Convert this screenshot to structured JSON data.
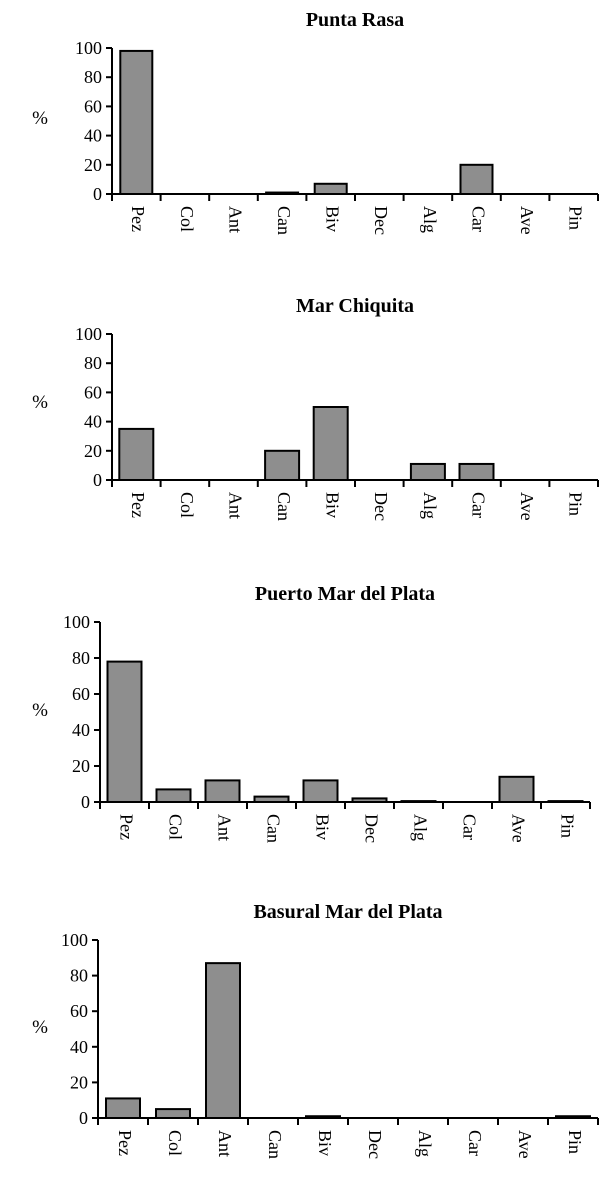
{
  "chart_data": [
    {
      "type": "bar",
      "title": "Punta Rasa",
      "ylabel": "%",
      "xlabel": "",
      "ylim": [
        0,
        100
      ],
      "yticks": [
        0,
        20,
        40,
        60,
        80,
        100
      ],
      "categories": [
        "Pez",
        "Col",
        "Ant",
        "Can",
        "Biv",
        "Dec",
        "Alg",
        "Car",
        "Ave",
        "Pin"
      ],
      "values": [
        98,
        0,
        0,
        1,
        7,
        0,
        0,
        20,
        0,
        0
      ],
      "bar_color": "#8e8e8e"
    },
    {
      "type": "bar",
      "title": "Mar Chiquita",
      "ylabel": "%",
      "xlabel": "",
      "ylim": [
        0,
        100
      ],
      "yticks": [
        0,
        20,
        40,
        60,
        80,
        100
      ],
      "categories": [
        "Pez",
        "Col",
        "Ant",
        "Can",
        "Biv",
        "Dec",
        "Alg",
        "Car",
        "Ave",
        "Pin"
      ],
      "values": [
        35,
        0,
        0,
        20,
        50,
        0,
        11,
        11,
        0,
        0
      ],
      "bar_color": "#8e8e8e"
    },
    {
      "type": "bar",
      "title": "Puerto Mar del Plata",
      "ylabel": "%",
      "xlabel": "",
      "ylim": [
        0,
        100
      ],
      "yticks": [
        0,
        20,
        40,
        60,
        80,
        100
      ],
      "categories": [
        "Pez",
        "Col",
        "Ant",
        "Can",
        "Biv",
        "Dec",
        "Alg",
        "Car",
        "Ave",
        "Pin"
      ],
      "values": [
        78,
        7,
        12,
        3,
        12,
        2,
        0.5,
        0,
        14,
        0.5
      ],
      "bar_color": "#8e8e8e"
    },
    {
      "type": "bar",
      "title": "Basural Mar del Plata",
      "ylabel": "%",
      "xlabel": "",
      "ylim": [
        0,
        100
      ],
      "yticks": [
        0,
        20,
        40,
        60,
        80,
        100
      ],
      "categories": [
        "Pez",
        "Col",
        "Ant",
        "Can",
        "Biv",
        "Dec",
        "Alg",
        "Car",
        "Ave",
        "Pin"
      ],
      "values": [
        11,
        5,
        87,
        0,
        1,
        0,
        0,
        0,
        0,
        1
      ],
      "bar_color": "#8e8e8e"
    }
  ]
}
